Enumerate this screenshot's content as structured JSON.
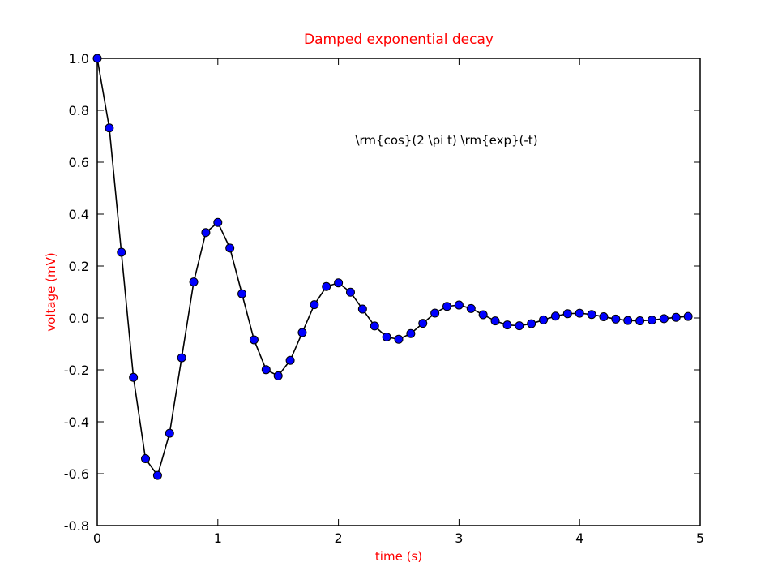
{
  "chart_data": {
    "type": "line",
    "title": "Damped exponential decay",
    "xlabel": "time (s)",
    "ylabel": "voltage (mV)",
    "annotation": "\\rm{cos}(2 \\pi t) \\rm{exp}(-t)",
    "xlim": [
      0,
      5
    ],
    "ylim": [
      -0.8,
      1.0
    ],
    "x_ticks": [
      "0",
      "1",
      "2",
      "3",
      "4",
      "5"
    ],
    "y_ticks": [
      "-0.8",
      "-0.6",
      "-0.4",
      "-0.2",
      "0.0",
      "0.2",
      "0.4",
      "0.6",
      "0.8",
      "1.0"
    ],
    "grid": false,
    "colors": {
      "title": "#ff0000",
      "axis_labels": "#ff0000",
      "line": "#000000",
      "marker_fill": "#0000ff",
      "marker_edge": "#000000"
    },
    "series": [
      {
        "marker": "circle",
        "x": [
          0.0,
          0.1,
          0.2,
          0.3,
          0.4,
          0.5,
          0.6,
          0.7,
          0.8,
          0.9,
          1.0,
          1.1,
          1.2,
          1.3,
          1.4,
          1.5,
          1.6,
          1.7,
          1.8,
          1.9,
          2.0,
          2.1,
          2.2,
          2.3,
          2.4,
          2.5,
          2.6,
          2.7,
          2.8,
          2.9,
          3.0,
          3.1,
          3.2,
          3.3,
          3.4,
          3.5,
          3.6,
          3.7,
          3.8,
          3.9,
          4.0,
          4.1,
          4.2,
          4.3,
          4.4,
          4.5,
          4.6,
          4.7,
          4.8,
          4.9
        ],
        "values": [
          1.0,
          0.732,
          0.2532,
          -0.2289,
          -0.5423,
          -0.6065,
          -0.444,
          -0.1534,
          0.1388,
          0.3288,
          0.3679,
          0.2693,
          0.093,
          -0.0842,
          -0.1994,
          -0.2231,
          -0.1633,
          -0.0564,
          0.0511,
          0.121,
          0.1353,
          0.0991,
          0.0342,
          -0.031,
          -0.0734,
          -0.0821,
          -0.0601,
          -0.0208,
          0.0188,
          0.0445,
          0.0498,
          0.0364,
          0.0126,
          -0.0114,
          -0.027,
          -0.0302,
          -0.0221,
          -0.0076,
          0.0069,
          0.0164,
          0.0183,
          0.0134,
          0.0046,
          -0.0042,
          -0.0099,
          -0.0111,
          -0.0081,
          -0.0028,
          0.0025,
          0.006
        ]
      }
    ]
  }
}
